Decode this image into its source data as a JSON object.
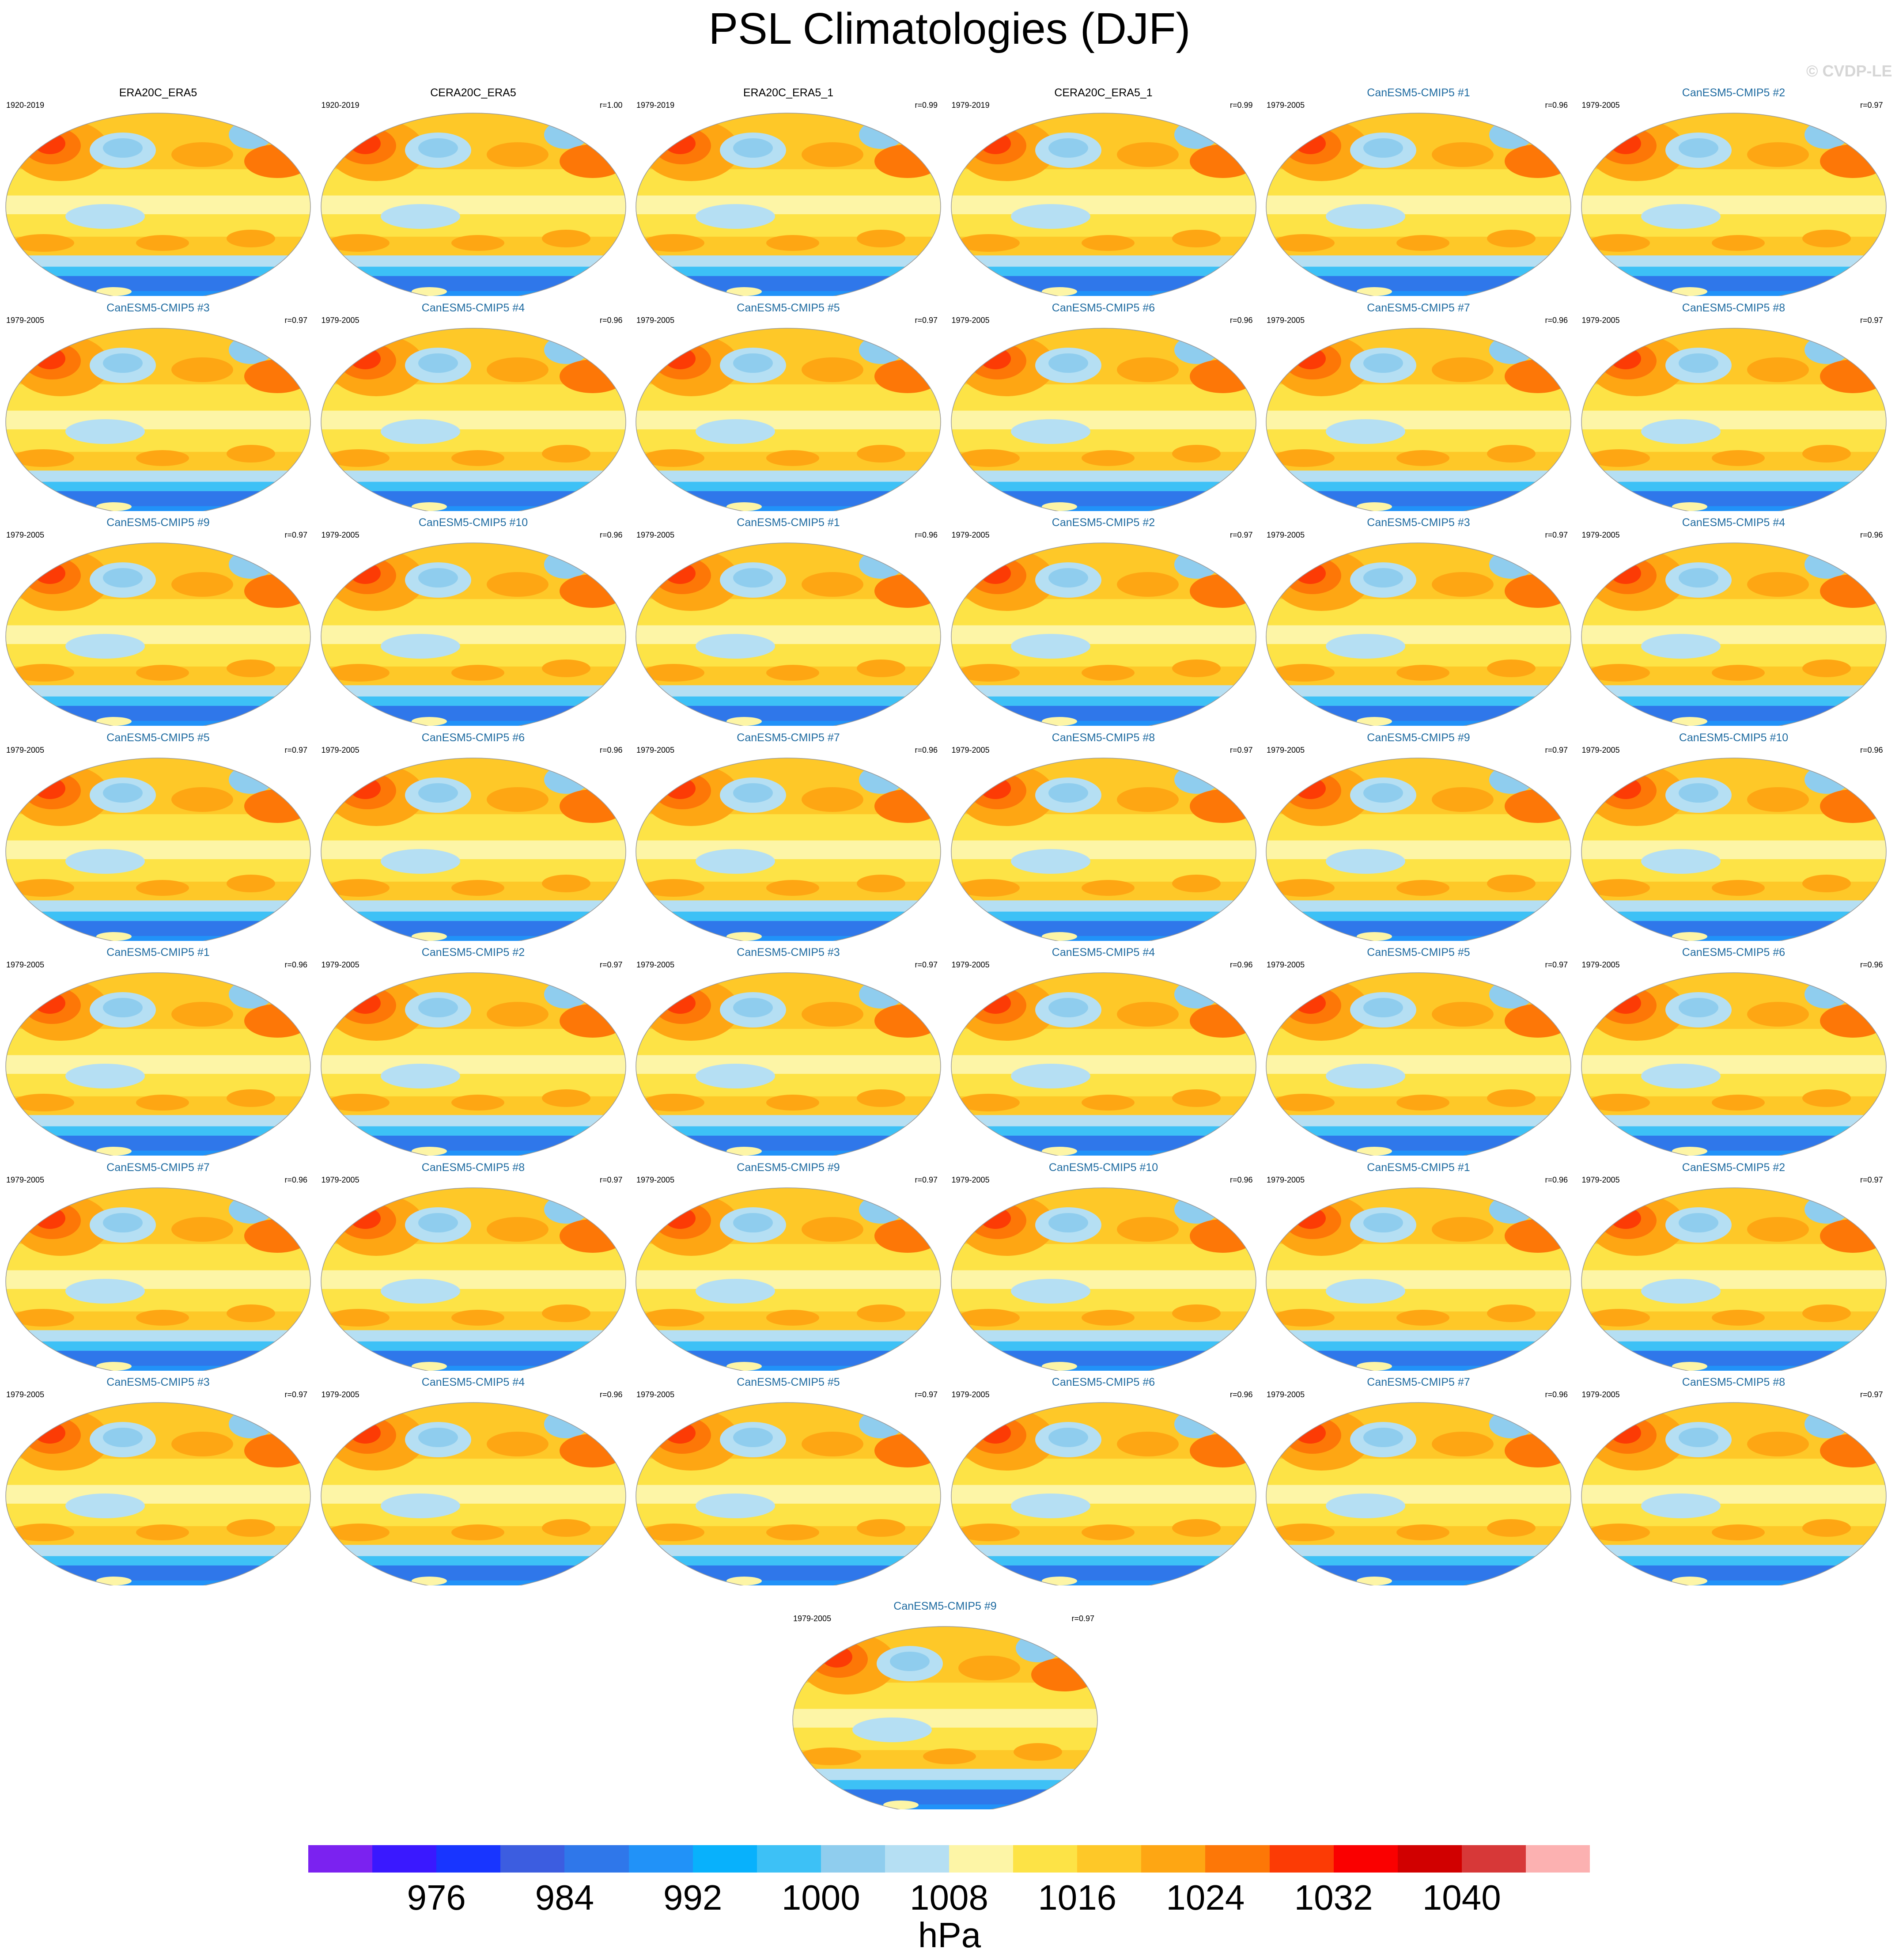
{
  "title": "PSL Climatologies (DJF)",
  "watermark": "© CVDP-LE",
  "panels": [
    {
      "title": "ERA20C_ERA5",
      "years": "1920-2019",
      "r": "",
      "kind": "obs"
    },
    {
      "title": "CERA20C_ERA5",
      "years": "1920-2019",
      "r": "r=1.00",
      "kind": "obs"
    },
    {
      "title": "ERA20C_ERA5_1",
      "years": "1979-2019",
      "r": "r=0.99",
      "kind": "obs"
    },
    {
      "title": "CERA20C_ERA5_1",
      "years": "1979-2019",
      "r": "r=0.99",
      "kind": "obs"
    },
    {
      "title": "CanESM5-CMIP5 #1",
      "years": "1979-2005",
      "r": "r=0.96",
      "kind": "model"
    },
    {
      "title": "CanESM5-CMIP5 #2",
      "years": "1979-2005",
      "r": "r=0.97",
      "kind": "model"
    },
    {
      "title": "CanESM5-CMIP5 #3",
      "years": "1979-2005",
      "r": "r=0.97",
      "kind": "model"
    },
    {
      "title": "CanESM5-CMIP5 #4",
      "years": "1979-2005",
      "r": "r=0.96",
      "kind": "model"
    },
    {
      "title": "CanESM5-CMIP5 #5",
      "years": "1979-2005",
      "r": "r=0.97",
      "kind": "model"
    },
    {
      "title": "CanESM5-CMIP5 #6",
      "years": "1979-2005",
      "r": "r=0.96",
      "kind": "model"
    },
    {
      "title": "CanESM5-CMIP5 #7",
      "years": "1979-2005",
      "r": "r=0.96",
      "kind": "model"
    },
    {
      "title": "CanESM5-CMIP5 #8",
      "years": "1979-2005",
      "r": "r=0.97",
      "kind": "model"
    },
    {
      "title": "CanESM5-CMIP5 #9",
      "years": "1979-2005",
      "r": "r=0.97",
      "kind": "model"
    },
    {
      "title": "CanESM5-CMIP5 #10",
      "years": "1979-2005",
      "r": "r=0.96",
      "kind": "model"
    },
    {
      "title": "CanESM5-CMIP5 #1",
      "years": "1979-2005",
      "r": "r=0.96",
      "kind": "model"
    },
    {
      "title": "CanESM5-CMIP5 #2",
      "years": "1979-2005",
      "r": "r=0.97",
      "kind": "model"
    },
    {
      "title": "CanESM5-CMIP5 #3",
      "years": "1979-2005",
      "r": "r=0.97",
      "kind": "model"
    },
    {
      "title": "CanESM5-CMIP5 #4",
      "years": "1979-2005",
      "r": "r=0.96",
      "kind": "model"
    },
    {
      "title": "CanESM5-CMIP5 #5",
      "years": "1979-2005",
      "r": "r=0.97",
      "kind": "model"
    },
    {
      "title": "CanESM5-CMIP5 #6",
      "years": "1979-2005",
      "r": "r=0.96",
      "kind": "model"
    },
    {
      "title": "CanESM5-CMIP5 #7",
      "years": "1979-2005",
      "r": "r=0.96",
      "kind": "model"
    },
    {
      "title": "CanESM5-CMIP5 #8",
      "years": "1979-2005",
      "r": "r=0.97",
      "kind": "model"
    },
    {
      "title": "CanESM5-CMIP5 #9",
      "years": "1979-2005",
      "r": "r=0.97",
      "kind": "model"
    },
    {
      "title": "CanESM5-CMIP5 #10",
      "years": "1979-2005",
      "r": "r=0.96",
      "kind": "model"
    },
    {
      "title": "CanESM5-CMIP5 #1",
      "years": "1979-2005",
      "r": "r=0.96",
      "kind": "model"
    },
    {
      "title": "CanESM5-CMIP5 #2",
      "years": "1979-2005",
      "r": "r=0.97",
      "kind": "model"
    },
    {
      "title": "CanESM5-CMIP5 #3",
      "years": "1979-2005",
      "r": "r=0.97",
      "kind": "model"
    },
    {
      "title": "CanESM5-CMIP5 #4",
      "years": "1979-2005",
      "r": "r=0.96",
      "kind": "model"
    },
    {
      "title": "CanESM5-CMIP5 #5",
      "years": "1979-2005",
      "r": "r=0.97",
      "kind": "model"
    },
    {
      "title": "CanESM5-CMIP5 #6",
      "years": "1979-2005",
      "r": "r=0.96",
      "kind": "model"
    },
    {
      "title": "CanESM5-CMIP5 #7",
      "years": "1979-2005",
      "r": "r=0.96",
      "kind": "model"
    },
    {
      "title": "CanESM5-CMIP5 #8",
      "years": "1979-2005",
      "r": "r=0.97",
      "kind": "model"
    },
    {
      "title": "CanESM5-CMIP5 #9",
      "years": "1979-2005",
      "r": "r=0.97",
      "kind": "model"
    },
    {
      "title": "CanESM5-CMIP5 #10",
      "years": "1979-2005",
      "r": "r=0.96",
      "kind": "model"
    },
    {
      "title": "CanESM5-CMIP5 #1",
      "years": "1979-2005",
      "r": "r=0.96",
      "kind": "model"
    },
    {
      "title": "CanESM5-CMIP5 #2",
      "years": "1979-2005",
      "r": "r=0.97",
      "kind": "model"
    },
    {
      "title": "CanESM5-CMIP5 #3",
      "years": "1979-2005",
      "r": "r=0.97",
      "kind": "model"
    },
    {
      "title": "CanESM5-CMIP5 #4",
      "years": "1979-2005",
      "r": "r=0.96",
      "kind": "model"
    },
    {
      "title": "CanESM5-CMIP5 #5",
      "years": "1979-2005",
      "r": "r=0.97",
      "kind": "model"
    },
    {
      "title": "CanESM5-CMIP5 #6",
      "years": "1979-2005",
      "r": "r=0.96",
      "kind": "model"
    },
    {
      "title": "CanESM5-CMIP5 #7",
      "years": "1979-2005",
      "r": "r=0.96",
      "kind": "model"
    },
    {
      "title": "CanESM5-CMIP5 #8",
      "years": "1979-2005",
      "r": "r=0.97",
      "kind": "model"
    },
    {
      "title": "CanESM5-CMIP5 #9",
      "years": "1979-2005",
      "r": "r=0.97",
      "kind": "model"
    }
  ],
  "colorbar": {
    "colors": [
      "#7b22f0",
      "#3a18ff",
      "#1835ff",
      "#3c5de0",
      "#2f77ea",
      "#2192f8",
      "#08b1fc",
      "#3dc1f6",
      "#8fcdee",
      "#b5dff3",
      "#fdf5a6",
      "#fde346",
      "#fec828",
      "#fea613",
      "#fd7707",
      "#fc3b05",
      "#fa0000",
      "#d10000",
      "#d73838",
      "#fcb1b1"
    ],
    "labels": [
      "976",
      "984",
      "992",
      "1000",
      "1008",
      "1016",
      "1024",
      "1032",
      "1040"
    ],
    "units": "hPa"
  }
}
